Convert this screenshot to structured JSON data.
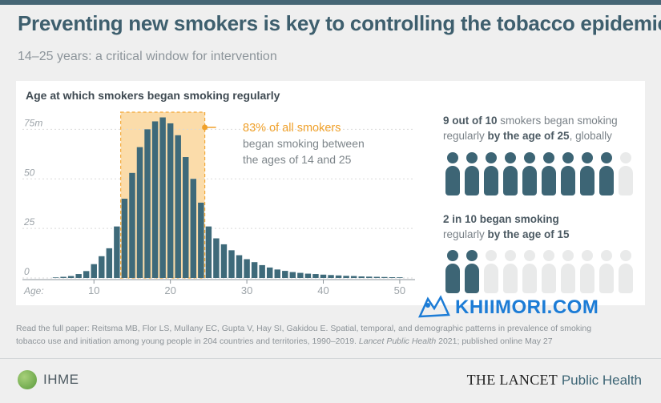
{
  "header": {
    "title": "Preventing new smokers is key to controlling the tobacco epidemic",
    "subtitle": "14–25 years: a critical window for intervention"
  },
  "chart_heading": "Age at which smokers began smoking regularly",
  "chart_data": {
    "type": "bar",
    "title": "Age at which smokers began smoking regularly",
    "xlabel": "Age:",
    "ylabel": "",
    "y_unit_suffix": "m",
    "x": [
      5,
      6,
      7,
      8,
      9,
      10,
      11,
      12,
      13,
      14,
      15,
      16,
      17,
      18,
      19,
      20,
      21,
      22,
      23,
      24,
      25,
      26,
      27,
      28,
      29,
      30,
      31,
      32,
      33,
      34,
      35,
      36,
      37,
      38,
      39,
      40,
      41,
      42,
      43,
      44,
      45,
      46,
      47,
      48,
      49,
      50
    ],
    "values": [
      0.3,
      0.6,
      1,
      2,
      3.5,
      7,
      11,
      15,
      26,
      40,
      53,
      66,
      75,
      79,
      81,
      78,
      72,
      61,
      50,
      38,
      26,
      20,
      17,
      14,
      11.5,
      9.5,
      8,
      6.5,
      5.3,
      4.3,
      3.6,
      3,
      2.6,
      2.2,
      2,
      1.7,
      1.5,
      1.3,
      1.1,
      1,
      0.8,
      0.7,
      0.6,
      0.5,
      0.4,
      0.35
    ],
    "ylim": [
      0,
      80
    ],
    "xlim": [
      4,
      52
    ],
    "y_ticks": [
      0,
      25,
      50,
      75
    ],
    "y_tick_labels": [
      "0",
      "25",
      "50",
      "75m"
    ],
    "x_ticks": [
      10,
      20,
      30,
      40,
      50
    ],
    "x_tick_labels": [
      "10",
      "20",
      "30",
      "40",
      "50"
    ],
    "highlight": {
      "from": 13.5,
      "to": 24.5
    },
    "annotation": {
      "headline": "83% of all smokers",
      "line2": "began smoking between",
      "line3": "the ages of 14 and 25"
    },
    "grid": true,
    "colors": {
      "bar": "#3e6a7a",
      "highlight_fill": "#fbdcaa",
      "highlight_border": "#f3a93a",
      "annotation": "#f0a12b",
      "grid": "#d9d9d9",
      "axis_text": "#9ca3a8"
    }
  },
  "stats": {
    "s1": {
      "prefix": "9 out of 10",
      "mid": " smokers began smoking",
      "line2_pre": "regularly ",
      "line2_bold": "by the age of 25",
      "line2_post": ", globally",
      "filled": 9,
      "total": 10
    },
    "s2": {
      "line1": "2 in 10 began smoking",
      "line2_pre": "regularly ",
      "line2_bold": "by the age of 15",
      "filled": 2,
      "total": 10
    }
  },
  "citation": {
    "line1": "Read the full paper: Reitsma MB, Flor LS, Mullany EC, Gupta V, Hay SI, Gakidou E. Spatial, temporal, and demographic patterns in prevalence of smoking",
    "line2_pre": "tobacco use and initiation among young people in 204 countries and territories, 1990–2019. ",
    "line2_italic": "Lancet Public Health",
    "line2_post": " 2021; published online May 27"
  },
  "footer": {
    "ihme": "IHME",
    "lancet_main": "THE LANCET",
    "lancet_sub": " Public Health"
  },
  "watermark": "KHIIMORI.COM"
}
